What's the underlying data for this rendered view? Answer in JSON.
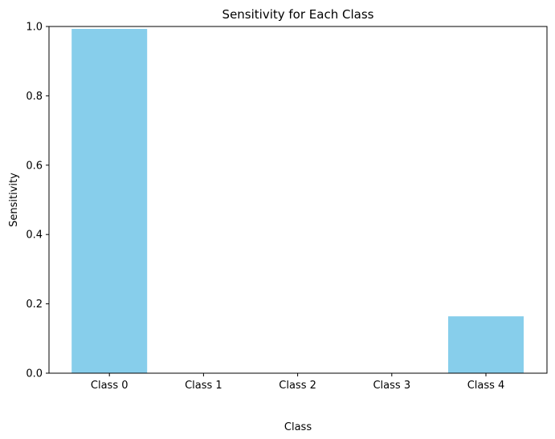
{
  "chart_data": {
    "type": "bar",
    "title": "Sensitivity for Each Class",
    "xlabel": "Class",
    "ylabel": "Sensitivity",
    "categories": [
      "Class 0",
      "Class 1",
      "Class 2",
      "Class 3",
      "Class 4"
    ],
    "values": [
      0.993,
      0.0,
      0.0,
      0.0,
      0.164
    ],
    "ylim": [
      0,
      1.0
    ],
    "yticks": [
      "0.0",
      "0.2",
      "0.4",
      "0.6",
      "0.8",
      "1.0"
    ],
    "ytick_values": [
      0.0,
      0.2,
      0.4,
      0.6,
      0.8,
      1.0
    ],
    "bar_color": "#87CEEB",
    "grid": false,
    "legend": "none"
  }
}
